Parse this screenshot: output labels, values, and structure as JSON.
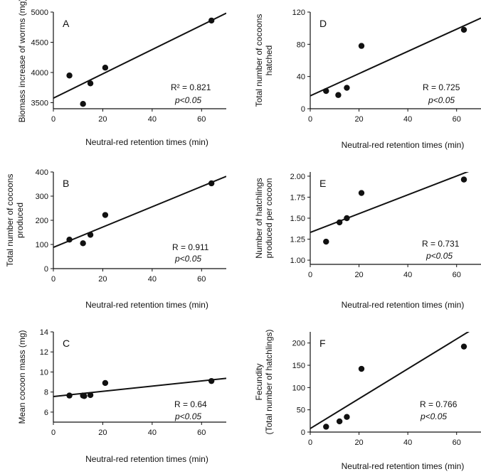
{
  "chart_data": [
    {
      "id": "A",
      "type": "scatter",
      "panel_label": "A",
      "title": "",
      "xlabel": "Neutral-red retention times (min)",
      "ylabel": [
        "Biomass increase of worms (mg)"
      ],
      "xlim": [
        0,
        70
      ],
      "ylim": [
        3400,
        5000
      ],
      "xticks": [
        0,
        20,
        40,
        60
      ],
      "yticks": [
        3500,
        4000,
        4500,
        5000
      ],
      "points": [
        [
          6.5,
          3950
        ],
        [
          12,
          3480
        ],
        [
          15,
          3820
        ],
        [
          21,
          4080
        ],
        [
          64,
          4860
        ]
      ],
      "fit": {
        "y_at_0": 3575,
        "slope": 20.1
      },
      "stat": "R² = 0.821",
      "p": "p<0.05"
    },
    {
      "id": "B",
      "type": "scatter",
      "panel_label": "B",
      "title": "",
      "xlabel": "Neutral-red retention times (min)",
      "ylabel": [
        "Total number of cocoons",
        "produced"
      ],
      "xlim": [
        0,
        70
      ],
      "ylim": [
        0,
        400
      ],
      "xticks": [
        0,
        20,
        40,
        60
      ],
      "yticks": [
        0,
        100,
        200,
        300,
        400
      ],
      "points": [
        [
          6.5,
          120
        ],
        [
          12,
          105
        ],
        [
          15,
          140
        ],
        [
          21,
          222
        ],
        [
          64,
          353
        ]
      ],
      "fit": {
        "y_at_0": 88,
        "slope": 4.2
      },
      "stat": "R = 0.911",
      "p": "p<0.05"
    },
    {
      "id": "C",
      "type": "scatter",
      "panel_label": "C",
      "title": "",
      "xlabel": "Neutral-red retention times (min)",
      "ylabel": [
        "Mean cocoon mass (mg)"
      ],
      "xlim": [
        0,
        70
      ],
      "ylim": [
        5,
        14
      ],
      "xticks": [
        0,
        20,
        40,
        60
      ],
      "yticks": [
        6,
        8,
        10,
        12,
        14
      ],
      "points": [
        [
          6.5,
          7.65
        ],
        [
          12,
          7.65
        ],
        [
          12.5,
          7.6
        ],
        [
          15,
          7.7
        ],
        [
          21,
          8.9
        ],
        [
          64,
          9.1
        ]
      ],
      "fit": {
        "y_at_0": 7.55,
        "slope": 0.026
      },
      "stat": "R = 0.64",
      "p": "p<0.05"
    },
    {
      "id": "D",
      "type": "scatter",
      "panel_label": "D",
      "title": "",
      "xlabel": "Neutral-red retention times (min)",
      "ylabel": [
        "Total number of cocoons",
        "hatched"
      ],
      "xlim": [
        0,
        70
      ],
      "ylim": [
        0,
        120
      ],
      "xticks": [
        0,
        20,
        40,
        60
      ],
      "yticks": [
        0,
        40,
        80,
        120
      ],
      "points": [
        [
          6.5,
          22
        ],
        [
          11.5,
          17
        ],
        [
          15,
          26
        ],
        [
          21,
          78
        ],
        [
          63,
          98
        ]
      ],
      "fit": {
        "y_at_0": 16,
        "slope": 1.38
      },
      "stat": "R = 0.725",
      "p": "p<0.05"
    },
    {
      "id": "E",
      "type": "scatter",
      "panel_label": "E",
      "title": "",
      "xlabel": "Neutral-red retention times (min)",
      "ylabel": [
        "Number of hatchlings",
        "produced per cocoon"
      ],
      "xlim": [
        0,
        70
      ],
      "ylim": [
        0.95,
        2.05
      ],
      "xticks": [
        0,
        20,
        40,
        60
      ],
      "yticks": [
        1.0,
        1.25,
        1.5,
        1.75,
        2.0
      ],
      "ytick_labels": [
        "1.00",
        "1.25",
        "1.50",
        "1.75",
        "2.00"
      ],
      "points": [
        [
          6.5,
          1.22
        ],
        [
          12,
          1.45
        ],
        [
          15,
          1.5
        ],
        [
          21,
          1.8
        ],
        [
          63,
          1.96
        ]
      ],
      "fit": {
        "y_at_0": 1.33,
        "slope": 0.0112
      },
      "stat": "R = 0.731",
      "p": "p<0.05"
    },
    {
      "id": "F",
      "type": "scatter",
      "panel_label": "F",
      "title": "",
      "xlabel": "Neutral-red retention times (min)",
      "ylabel": [
        "Fecundity",
        "(Total number of hatchlings)"
      ],
      "xlim": [
        0,
        70
      ],
      "ylim": [
        0,
        225
      ],
      "xticks": [
        0,
        20,
        40,
        60
      ],
      "yticks": [
        0,
        50,
        100,
        150,
        200
      ],
      "points": [
        [
          6.5,
          12
        ],
        [
          12,
          24
        ],
        [
          15,
          34
        ],
        [
          21,
          142
        ],
        [
          63,
          192
        ]
      ],
      "fit": {
        "y_at_0": 8,
        "slope": 3.35
      },
      "stat": "R = 0.766",
      "p": "p<0.05"
    }
  ]
}
